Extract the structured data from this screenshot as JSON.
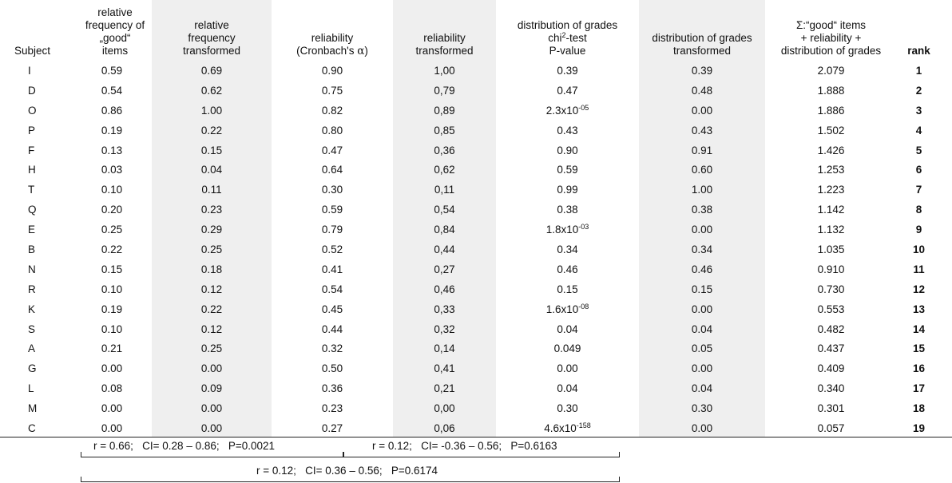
{
  "headers": {
    "subject": "Subject",
    "rel_freq_good": [
      "relative",
      "frequency of",
      "„good“",
      "items"
    ],
    "rel_freq_transformed": [
      "relative",
      "frequency",
      "transformed"
    ],
    "reliability_line1": "reliability",
    "reliability_line2_prefix": "(Cronbach's ",
    "reliability_alpha": "α",
    "reliability_line2_suffix": ")",
    "reliability_transformed": [
      "reliability",
      "transformed"
    ],
    "dist_line1": "distribution of grades",
    "dist_chi": "chi",
    "dist_chi_sup": "2",
    "dist_chi_rest": "-test",
    "dist_line3": "P-value",
    "dist_transformed": [
      "distribution of grades",
      "transformed"
    ],
    "sum": [
      "Σ:“good“ items",
      "+ reliability +",
      "distribution of grades"
    ],
    "rank": "rank"
  },
  "rows": [
    {
      "subject": "I",
      "rf": "0.59",
      "rft": "0.69",
      "rel": "0.90",
      "relt": "1,00",
      "p": "0.39",
      "p_sup": "",
      "pt": "0.39",
      "sum": "2.079",
      "rank": "1"
    },
    {
      "subject": "D",
      "rf": "0.54",
      "rft": "0.62",
      "rel": "0.75",
      "relt": "0,79",
      "p": "0.47",
      "p_sup": "",
      "pt": "0.48",
      "sum": "1.888",
      "rank": "2"
    },
    {
      "subject": "O",
      "rf": "0.86",
      "rft": "1.00",
      "rel": "0.82",
      "relt": "0,89",
      "p": "2.3x10",
      "p_sup": "-05",
      "pt": "0.00",
      "sum": "1.886",
      "rank": "3"
    },
    {
      "subject": "P",
      "rf": "0.19",
      "rft": "0.22",
      "rel": "0.80",
      "relt": "0,85",
      "p": "0.43",
      "p_sup": "",
      "pt": "0.43",
      "sum": "1.502",
      "rank": "4"
    },
    {
      "subject": "F",
      "rf": "0.13",
      "rft": "0.15",
      "rel": "0.47",
      "relt": "0,36",
      "p": "0.90",
      "p_sup": "",
      "pt": "0.91",
      "sum": "1.426",
      "rank": "5"
    },
    {
      "subject": "H",
      "rf": "0.03",
      "rft": "0.04",
      "rel": "0.64",
      "relt": "0,62",
      "p": "0.59",
      "p_sup": "",
      "pt": "0.60",
      "sum": "1.253",
      "rank": "6"
    },
    {
      "subject": "T",
      "rf": "0.10",
      "rft": "0.11",
      "rel": "0.30",
      "relt": "0,11",
      "p": "0.99",
      "p_sup": "",
      "pt": "1.00",
      "sum": "1.223",
      "rank": "7"
    },
    {
      "subject": "Q",
      "rf": "0.20",
      "rft": "0.23",
      "rel": "0.59",
      "relt": "0,54",
      "p": "0.38",
      "p_sup": "",
      "pt": "0.38",
      "sum": "1.142",
      "rank": "8"
    },
    {
      "subject": "E",
      "rf": "0.25",
      "rft": "0.29",
      "rel": "0.79",
      "relt": "0,84",
      "p": "1.8x10",
      "p_sup": "-03",
      "pt": "0.00",
      "sum": "1.132",
      "rank": "9"
    },
    {
      "subject": "B",
      "rf": "0.22",
      "rft": "0.25",
      "rel": "0.52",
      "relt": "0,44",
      "p": "0.34",
      "p_sup": "",
      "pt": "0.34",
      "sum": "1.035",
      "rank": "10"
    },
    {
      "subject": "N",
      "rf": "0.15",
      "rft": "0.18",
      "rel": "0.41",
      "relt": "0,27",
      "p": "0.46",
      "p_sup": "",
      "pt": "0.46",
      "sum": "0.910",
      "rank": "11"
    },
    {
      "subject": "R",
      "rf": "0.10",
      "rft": "0.12",
      "rel": "0.54",
      "relt": "0,46",
      "p": "0.15",
      "p_sup": "",
      "pt": "0.15",
      "sum": "0.730",
      "rank": "12"
    },
    {
      "subject": "K",
      "rf": "0.19",
      "rft": "0.22",
      "rel": "0.45",
      "relt": "0,33",
      "p": "1.6x10",
      "p_sup": "-08",
      "pt": "0.00",
      "sum": "0.553",
      "rank": "13"
    },
    {
      "subject": "S",
      "rf": "0.10",
      "rft": "0.12",
      "rel": "0.44",
      "relt": "0,32",
      "p": "0.04",
      "p_sup": "",
      "pt": "0.04",
      "sum": "0.482",
      "rank": "14"
    },
    {
      "subject": "A",
      "rf": "0.21",
      "rft": "0.25",
      "rel": "0.32",
      "relt": "0,14",
      "p": "0.049",
      "p_sup": "",
      "pt": "0.05",
      "sum": "0.437",
      "rank": "15"
    },
    {
      "subject": "G",
      "rf": "0.00",
      "rft": "0.00",
      "rel": "0.50",
      "relt": "0,41",
      "p": "0.00",
      "p_sup": "",
      "pt": "0.00",
      "sum": "0.409",
      "rank": "16"
    },
    {
      "subject": "L",
      "rf": "0.08",
      "rft": "0.09",
      "rel": "0.36",
      "relt": "0,21",
      "p": "0.04",
      "p_sup": "",
      "pt": "0.04",
      "sum": "0.340",
      "rank": "17"
    },
    {
      "subject": "M",
      "rf": "0.00",
      "rft": "0.00",
      "rel": "0.23",
      "relt": "0,00",
      "p": "0.30",
      "p_sup": "",
      "pt": "0.30",
      "sum": "0.301",
      "rank": "18"
    },
    {
      "subject": "C",
      "rf": "0.00",
      "rft": "0.00",
      "rel": "0.27",
      "relt": "0,06",
      "p": "4.6x10",
      "p_sup": "-158",
      "pt": "0.00",
      "sum": "0.057",
      "rank": "19"
    }
  ],
  "stats": {
    "freq": "r = 0.66;   CI= 0.28 – 0.86;   P=0.0021",
    "reliability": "r = 0.12;   CI= -0.36 – 0.56;   P=0.6163",
    "combined": "r = 0.12;   CI= 0.36 – 0.56;   P=0.6174"
  }
}
